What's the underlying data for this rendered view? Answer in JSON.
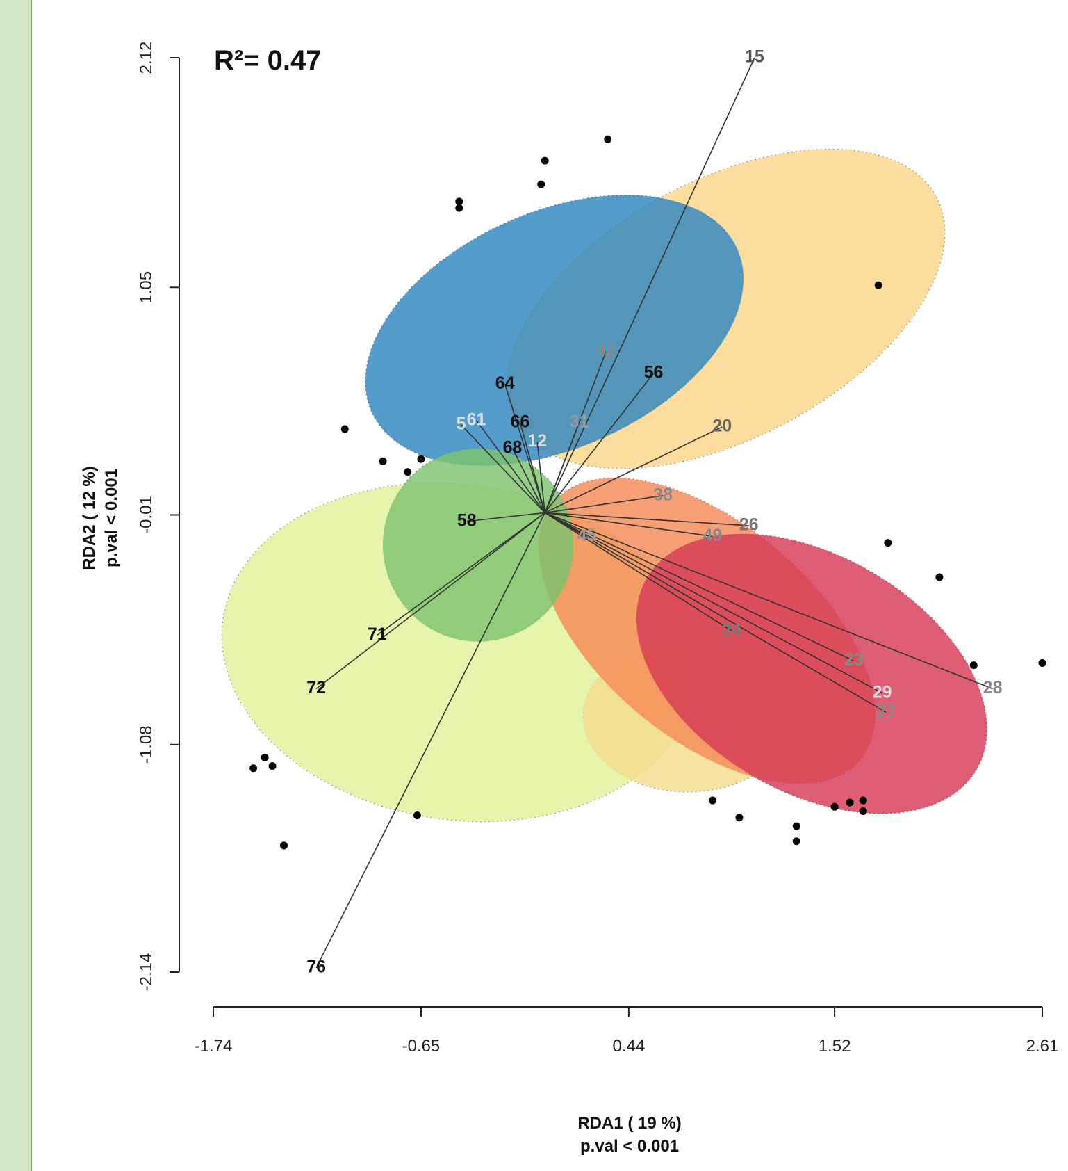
{
  "annotation": {
    "r2_label": "R²= 0.47"
  },
  "chart_data": {
    "type": "scatter",
    "title": "",
    "xlabel": "RDA1 ( 19 %)",
    "xlabel_sub": "p.val <  0.001",
    "ylabel": "RDA2 ( 12 %)",
    "ylabel_sub": "p.val <  0.001",
    "xlim": [
      -1.74,
      2.61
    ],
    "ylim": [
      -2.14,
      2.12
    ],
    "x_ticks": [
      "-1.74",
      "-0.65",
      "0.44",
      "1.52",
      "2.61"
    ],
    "y_ticks": [
      "2.12",
      "1.05",
      "-0.01",
      "-1.08",
      "-2.14"
    ],
    "grid": false,
    "origin": [
      0.0,
      0.0
    ],
    "ellipses": [
      {
        "color": "#e2f39a",
        "cx": -0.45,
        "cy": -0.65,
        "rx": 1.25,
        "ry": 0.78,
        "angle": -8
      },
      {
        "color": "#f4dc8c",
        "cx": 0.75,
        "cy": -0.95,
        "rx": 0.55,
        "ry": 0.35,
        "angle": 0
      },
      {
        "color": "#fdd687",
        "cx": 0.95,
        "cy": 0.95,
        "rx": 1.25,
        "ry": 0.6,
        "angle": 28
      },
      {
        "color": "#2e86bf",
        "cx": 0.05,
        "cy": 0.85,
        "rx": 1.05,
        "ry": 0.55,
        "angle": 24
      },
      {
        "color": "#f58a55",
        "cx": 0.85,
        "cy": -0.55,
        "rx": 1.05,
        "ry": 0.5,
        "angle": -40
      },
      {
        "color": "#d63a55",
        "cx": 1.4,
        "cy": -0.75,
        "rx": 1.0,
        "ry": 0.55,
        "angle": -30
      },
      {
        "color": "#7cc36e",
        "cx": -0.35,
        "cy": -0.15,
        "rx": 0.5,
        "ry": 0.45,
        "angle": 0
      }
    ],
    "vectors": [
      {
        "label": "15",
        "x": 1.1,
        "y": 2.12,
        "color": "#555"
      },
      {
        "label": "42",
        "x": 0.32,
        "y": 0.75,
        "color": "#888"
      },
      {
        "label": "56",
        "x": 0.57,
        "y": 0.65,
        "color": "#111"
      },
      {
        "label": "20",
        "x": 0.93,
        "y": 0.4,
        "color": "#666"
      },
      {
        "label": "64",
        "x": -0.21,
        "y": 0.6,
        "color": "#111"
      },
      {
        "label": "66",
        "x": -0.13,
        "y": 0.42,
        "color": "#111"
      },
      {
        "label": "68",
        "x": -0.17,
        "y": 0.3,
        "color": "#111"
      },
      {
        "label": "31",
        "x": 0.18,
        "y": 0.42,
        "color": "#999"
      },
      {
        "label": "5",
        "x": -0.44,
        "y": 0.41,
        "color": "#ddd"
      },
      {
        "label": "61",
        "x": -0.36,
        "y": 0.43,
        "color": "#ddd"
      },
      {
        "label": "12",
        "x": -0.04,
        "y": 0.33,
        "color": "#ddd"
      },
      {
        "label": "38",
        "x": 0.62,
        "y": 0.08,
        "color": "#888"
      },
      {
        "label": "26",
        "x": 1.07,
        "y": -0.06,
        "color": "#777"
      },
      {
        "label": "49",
        "x": 0.88,
        "y": -0.11,
        "color": "#888"
      },
      {
        "label": "45",
        "x": 0.22,
        "y": -0.11,
        "color": "#999"
      },
      {
        "label": "58",
        "x": -0.41,
        "y": -0.04,
        "color": "#111"
      },
      {
        "label": "24",
        "x": 0.98,
        "y": -0.55,
        "color": "#777"
      },
      {
        "label": "23",
        "x": 1.62,
        "y": -0.69,
        "color": "#888"
      },
      {
        "label": "29",
        "x": 1.77,
        "y": -0.84,
        "color": "#ddd"
      },
      {
        "label": "27",
        "x": 1.79,
        "y": -0.93,
        "color": "#888"
      },
      {
        "label": "28",
        "x": 2.35,
        "y": -0.82,
        "color": "#888"
      },
      {
        "label": "71",
        "x": -0.88,
        "y": -0.57,
        "color": "#111"
      },
      {
        "label": "72",
        "x": -1.2,
        "y": -0.82,
        "color": "#111"
      },
      {
        "label": "76",
        "x": -1.2,
        "y": -2.12,
        "color": "#111"
      }
    ],
    "points": [
      {
        "x": 0.33,
        "y": 1.74
      },
      {
        "x": -0.0,
        "y": 1.64
      },
      {
        "x": -0.02,
        "y": 1.53
      },
      {
        "x": -0.45,
        "y": 1.45
      },
      {
        "x": -0.45,
        "y": 1.42
      },
      {
        "x": 1.75,
        "y": 1.06
      },
      {
        "x": -1.05,
        "y": 0.39
      },
      {
        "x": -0.85,
        "y": 0.24
      },
      {
        "x": -0.72,
        "y": 0.19
      },
      {
        "x": -0.65,
        "y": 0.25
      },
      {
        "x": 1.8,
        "y": -0.14
      },
      {
        "x": 2.07,
        "y": -0.3
      },
      {
        "x": 2.25,
        "y": -0.71
      },
      {
        "x": 2.61,
        "y": -0.7
      },
      {
        "x": -1.53,
        "y": -1.19
      },
      {
        "x": -1.47,
        "y": -1.14
      },
      {
        "x": -1.43,
        "y": -1.18
      },
      {
        "x": -1.37,
        "y": -1.55
      },
      {
        "x": -0.67,
        "y": -1.41
      },
      {
        "x": 0.88,
        "y": -1.34
      },
      {
        "x": 1.02,
        "y": -1.42
      },
      {
        "x": 1.32,
        "y": -1.46
      },
      {
        "x": 1.32,
        "y": -1.53
      },
      {
        "x": 1.52,
        "y": -1.37
      },
      {
        "x": 1.6,
        "y": -1.35
      },
      {
        "x": 1.67,
        "y": -1.34
      },
      {
        "x": 1.67,
        "y": -1.39
      }
    ]
  }
}
